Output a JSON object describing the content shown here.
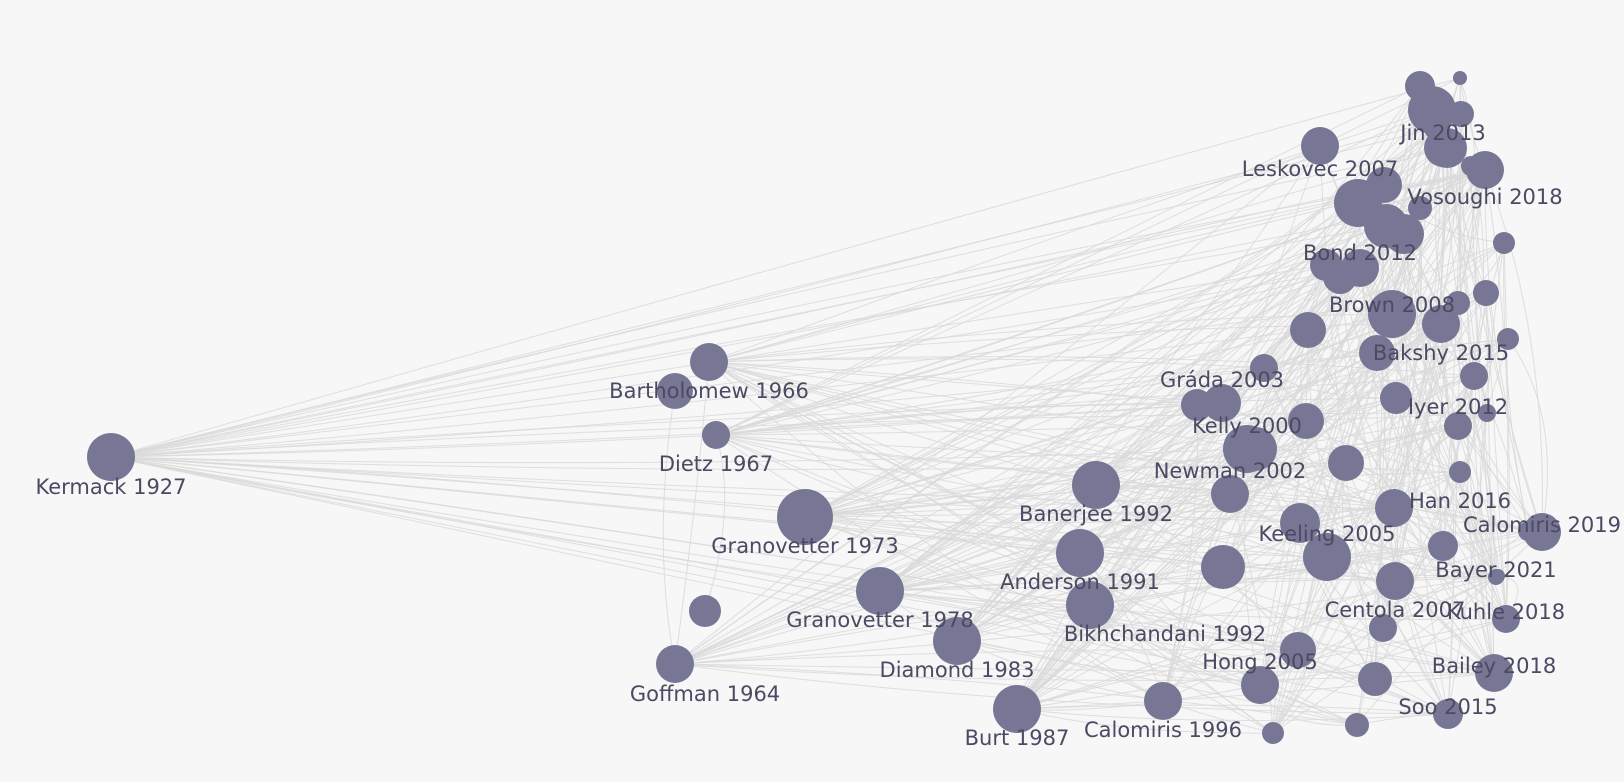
{
  "colors": {
    "background": "#f7f7f7",
    "node": "#777795",
    "edge": "#d9d9d9",
    "label": "#4a4a63"
  },
  "nodes": [
    {
      "id": "kermack-1927",
      "label": "Kermack 1927",
      "size": "large"
    },
    {
      "id": "goffman-1964",
      "label": "Goffman 1964",
      "size": "medium"
    },
    {
      "id": "bartholomew-1966",
      "label": "Bartholomew 1966",
      "size": "medium"
    },
    {
      "id": "dietz-1967",
      "label": "Dietz 1967",
      "size": "small"
    },
    {
      "id": "granovetter-1973",
      "label": "Granovetter 1973",
      "size": "xlarge"
    },
    {
      "id": "granovetter-1978",
      "label": "Granovetter 1978",
      "size": "large"
    },
    {
      "id": "diamond-1983",
      "label": "Diamond 1983",
      "size": "large"
    },
    {
      "id": "burt-1987",
      "label": "Burt 1987",
      "size": "large"
    },
    {
      "id": "anderson-1991",
      "label": "Anderson 1991",
      "size": "large"
    },
    {
      "id": "banerjee-1992",
      "label": "Banerjee 1992",
      "size": "large"
    },
    {
      "id": "bikhchandani-1992",
      "label": "Bikhchandani 1992",
      "size": "large"
    },
    {
      "id": "calomiris-1996",
      "label": "Calomiris 1996",
      "size": "medium"
    },
    {
      "id": "kelly-2000",
      "label": "Kelly 2000",
      "size": "large"
    },
    {
      "id": "newman-2002",
      "label": "Newman 2002",
      "size": "medium"
    },
    {
      "id": "grada-2003",
      "label": "Gráda 2003",
      "size": "medium"
    },
    {
      "id": "keeling-2005",
      "label": "Keeling 2005",
      "size": "large"
    },
    {
      "id": "hong-2005",
      "label": "Hong 2005",
      "size": "medium"
    },
    {
      "id": "leskovec-2007",
      "label": "Leskovec 2007",
      "size": "medium"
    },
    {
      "id": "centola-2007",
      "label": "Centola 2007",
      "size": "medium"
    },
    {
      "id": "brown-2008",
      "label": "Brown 2008",
      "size": "large"
    },
    {
      "id": "bond-2012",
      "label": "Bond 2012",
      "size": "medium"
    },
    {
      "id": "iyer-2012",
      "label": "Iyer 2012",
      "size": "small"
    },
    {
      "id": "jin-2013",
      "label": "Jin 2013",
      "size": "medium"
    },
    {
      "id": "bakshy-2015",
      "label": "Bakshy 2015",
      "size": "medium"
    },
    {
      "id": "soo-2015",
      "label": "Soo 2015",
      "size": "small"
    },
    {
      "id": "han-2016",
      "label": "Han 2016",
      "size": "medium"
    },
    {
      "id": "vosoughi-2018",
      "label": "Vosoughi 2018",
      "size": "medium"
    },
    {
      "id": "kuhle-2018",
      "label": "Kuhle 2018",
      "size": "small"
    },
    {
      "id": "bailey-2018",
      "label": "Bailey 2018",
      "size": "medium"
    },
    {
      "id": "calomiris-2019",
      "label": "Calomiris 2019",
      "size": "medium"
    },
    {
      "id": "bayer-2021",
      "label": "Bayer 2021",
      "size": "tiny"
    }
  ]
}
